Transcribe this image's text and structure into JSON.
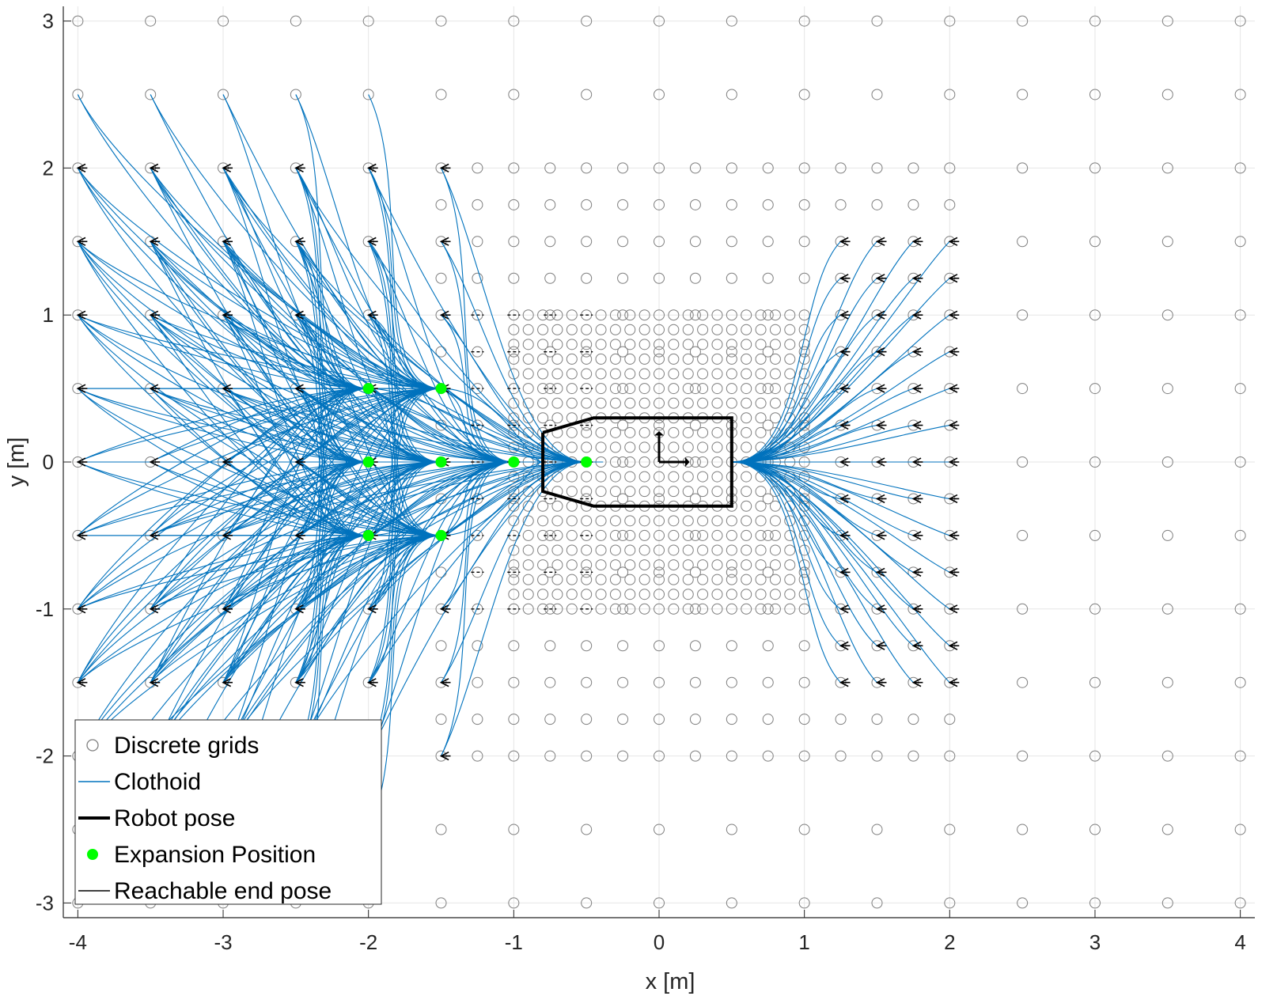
{
  "chart_data": {
    "type": "scatter",
    "title": "",
    "xlabel": "x [m]",
    "ylabel": "y [m]",
    "xlim": [
      -4.1,
      4.1
    ],
    "ylim": [
      -3.1,
      3.1
    ],
    "xticks": [
      -4,
      -3,
      -2,
      -1,
      0,
      1,
      2,
      3,
      4
    ],
    "yticks": [
      -3,
      -2,
      -1,
      0,
      1,
      2,
      3
    ],
    "xtick_labels": [
      "-4",
      "-3",
      "-2",
      "-1",
      "0",
      "1",
      "2",
      "3",
      "4"
    ],
    "ytick_labels": [
      "-3",
      "-2",
      "-1",
      "0",
      "1",
      "2",
      "3"
    ],
    "grid": true,
    "legend_position": "bottom-left",
    "series": [
      {
        "name": "Discrete grids",
        "marker": "open-circle",
        "color": "#7f7f7f",
        "coarse_grid": {
          "x_step": 0.5,
          "y_step": 0.5,
          "x_range": [
            -4,
            4
          ],
          "y_range": [
            -3,
            3
          ]
        },
        "medium_grid": {
          "x_step": 0.25,
          "y_step": 0.25,
          "x_range": [
            -1.5,
            2
          ],
          "y_range": [
            -2,
            2
          ]
        },
        "fine_grid": {
          "x_step": 0.1,
          "y_step": 0.1,
          "x_range": [
            -1,
            1
          ],
          "y_range": [
            -1,
            1
          ]
        }
      },
      {
        "name": "Clothoid",
        "style": "line",
        "color": "#0072bd"
      },
      {
        "name": "Robot pose",
        "style": "thick-line",
        "color": "#000000",
        "outline": [
          [
            -0.8,
            0.2
          ],
          [
            -0.45,
            0.3
          ],
          [
            0.5,
            0.3
          ],
          [
            0.5,
            -0.3
          ],
          [
            -0.45,
            -0.3
          ],
          [
            -0.8,
            -0.2
          ],
          [
            -0.8,
            0.2
          ]
        ],
        "origin": [
          0,
          0
        ]
      },
      {
        "name": "Expansion Position",
        "marker": "filled-circle",
        "color": "#00ff00",
        "points": [
          [
            -2,
            0.5
          ],
          [
            -1.5,
            0.5
          ],
          [
            -2,
            0
          ],
          [
            -1.5,
            0
          ],
          [
            -1,
            0
          ],
          [
            -0.5,
            0
          ],
          [
            -2,
            -0.5
          ],
          [
            -1.5,
            -0.5
          ]
        ]
      },
      {
        "name": "Reachable end pose",
        "style": "line",
        "color": "#000000"
      }
    ]
  },
  "colors": {
    "clothoid": "#0072bd",
    "grid_marker": "#7f7f7f",
    "expansion": "#00ff00",
    "robot": "#000000",
    "gridline": "#e6e6e6"
  }
}
